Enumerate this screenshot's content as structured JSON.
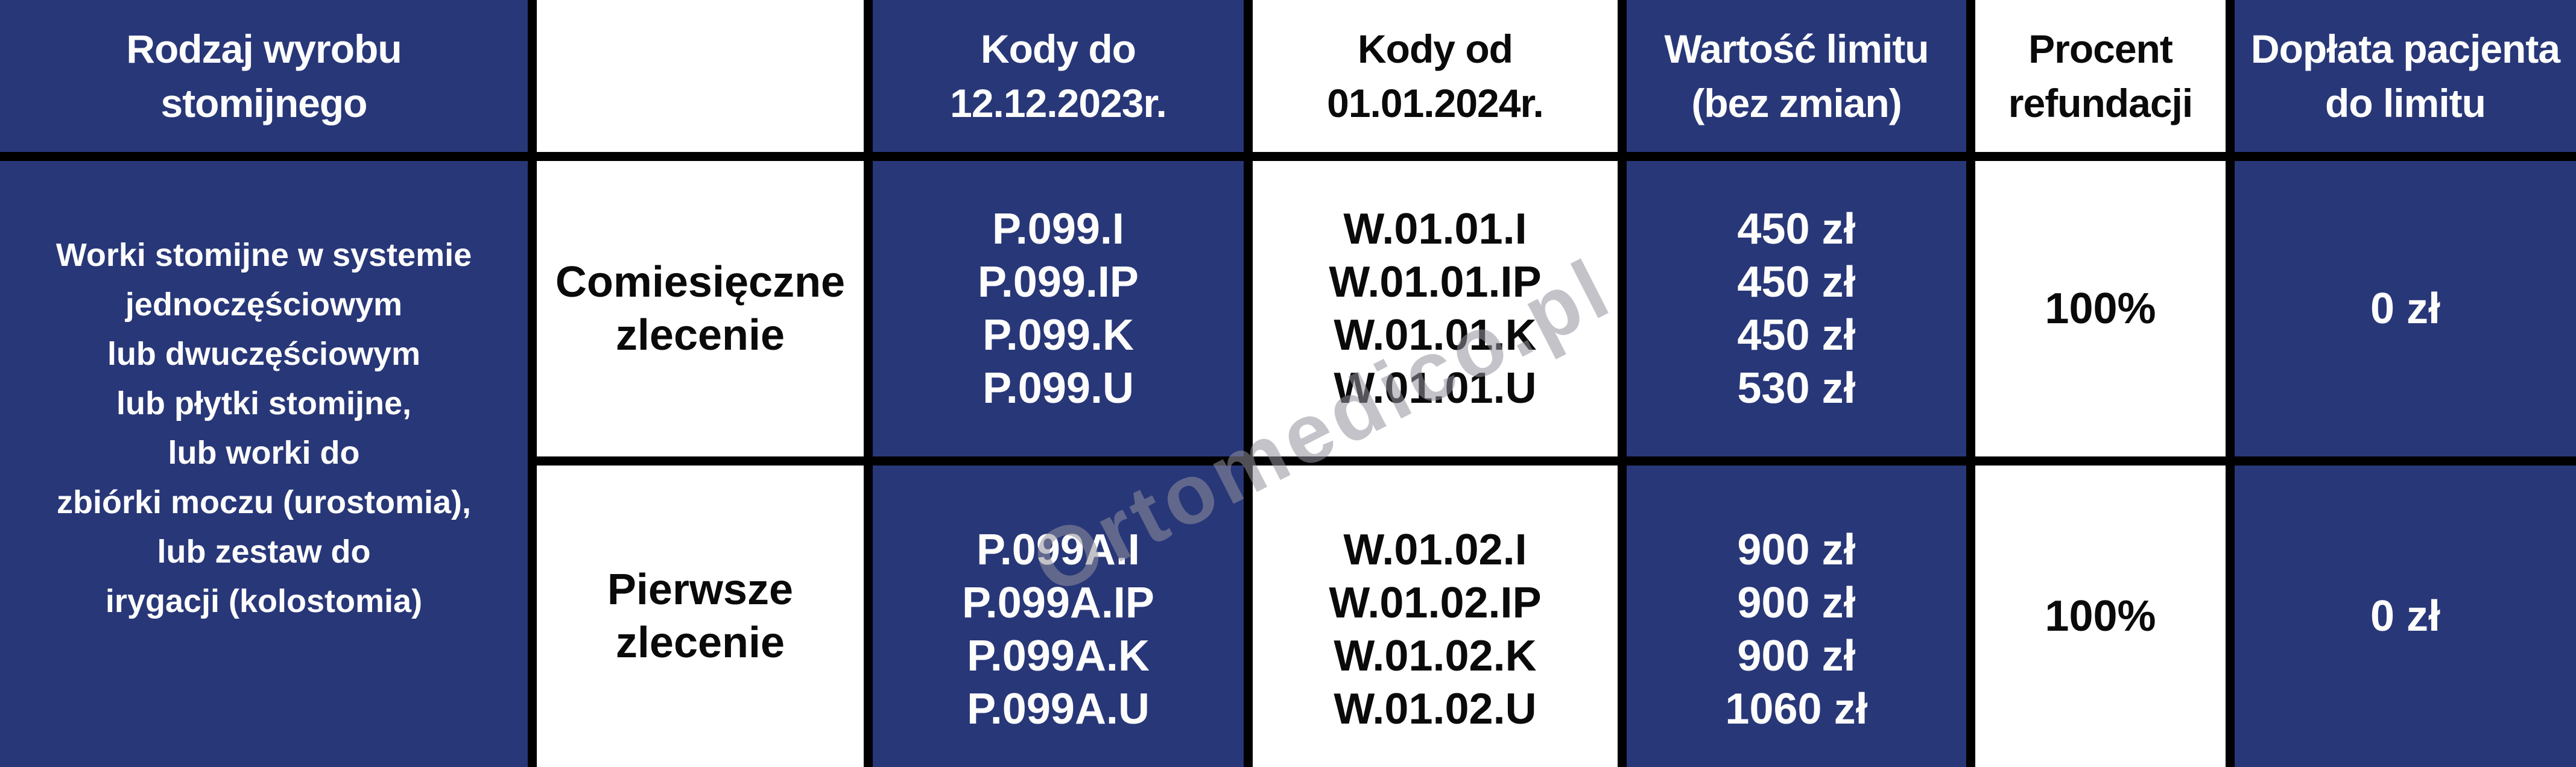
{
  "colors": {
    "navy": "#283778",
    "border_black": "#000000",
    "cell_white": "#ffffff",
    "text_white": "#fdfdfc",
    "watermark_gray": "#92929c"
  },
  "watermark": "Ortomedico.pl",
  "table": {
    "header": [
      {
        "lines": [
          "Rodzaj wyrobu",
          "stomijnego"
        ]
      },
      {
        "lines": []
      },
      {
        "lines": [
          "Kody do",
          "12.12.2023r."
        ]
      },
      {
        "lines": [
          "Kody od",
          "01.01.2024r."
        ]
      },
      {
        "lines": [
          "Wartość limitu",
          "(bez zmian)"
        ]
      },
      {
        "lines": [
          "Procent",
          "refundacji"
        ]
      },
      {
        "lines": [
          "Dopłata pacjenta",
          "do limitu"
        ]
      }
    ],
    "product_type": {
      "lines": [
        "Worki stomijne w systemie",
        "jednoczęściowym",
        "lub dwuczęściowym",
        "lub płytki stomijne,",
        "lub worki do",
        "zbiórki moczu (urostomia),",
        "lub zestaw do",
        "irygacji (kolostomia)"
      ]
    },
    "rows": [
      {
        "order_type": {
          "lines": [
            "Comiesięczne",
            "zlecenie"
          ]
        },
        "codes_old": {
          "lines": [
            "P.099.I",
            "P.099.IP",
            "P.099.K",
            "P.099.U"
          ]
        },
        "codes_new": {
          "lines": [
            "W.01.01.I",
            "W.01.01.IP",
            "W.01.01.K",
            "W.01.01.U"
          ]
        },
        "limit_values": {
          "lines": [
            "450 zł",
            "450 zł",
            "450 zł",
            "530 zł"
          ]
        },
        "refund_percent": "100%",
        "patient_payment": "0 zł"
      },
      {
        "order_type": {
          "lines": [
            "Pierwsze",
            "zlecenie"
          ]
        },
        "codes_old": {
          "lines": [
            "P.099A.I",
            "P.099A.IP",
            "P.099A.K",
            "P.099A.U"
          ]
        },
        "codes_new": {
          "lines": [
            "W.01.02.I",
            "W.01.02.IP",
            "W.01.02.K",
            "W.01.02.U"
          ]
        },
        "limit_values": {
          "lines": [
            "900 zł",
            "900 zł",
            "900 zł",
            "1060 zł"
          ]
        },
        "refund_percent": "100%",
        "patient_payment": "0 zł"
      }
    ]
  }
}
